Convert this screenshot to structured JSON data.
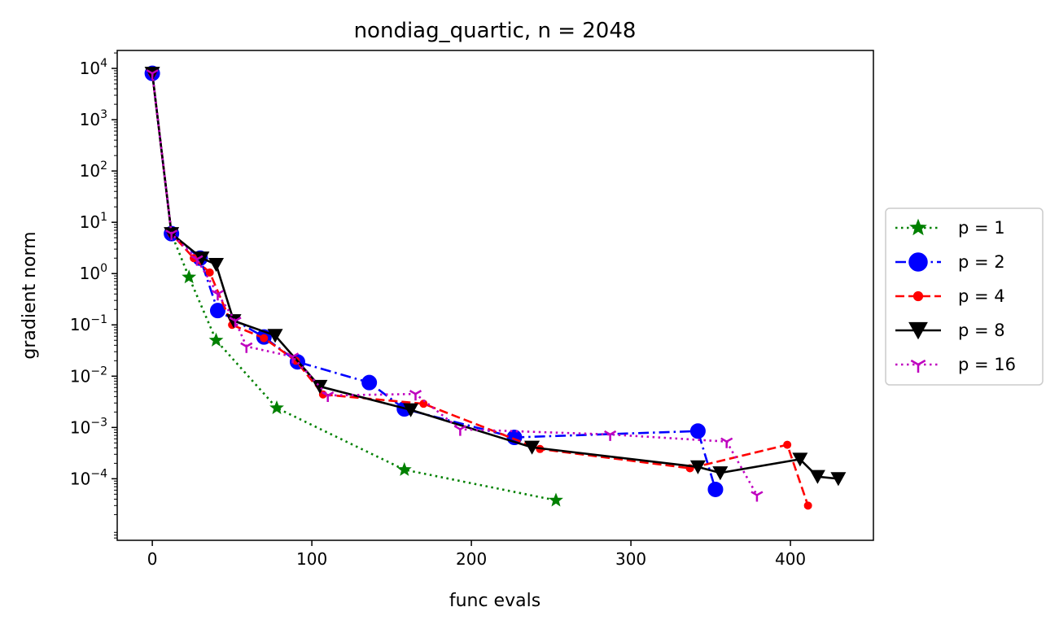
{
  "chart_data": {
    "type": "line",
    "title": "nondiag_quartic, n = 2048",
    "xlabel": "func evals",
    "ylabel": "gradient norm",
    "xscale": "linear",
    "yscale": "log",
    "xlim": [
      -22,
      452
    ],
    "ylim_log10": [
      -5.2,
      4.35
    ],
    "xticks": [
      0,
      100,
      200,
      300,
      400
    ],
    "xtick_labels": [
      "0",
      "100",
      "200",
      "300",
      "400"
    ],
    "ytick_exponents": [
      -4,
      -3,
      -2,
      -1,
      0,
      1,
      2,
      3,
      4
    ],
    "ytick_base": "10",
    "grid": false,
    "legend_position": "outside-right",
    "series": [
      {
        "name": "p = 1",
        "color": "#008000",
        "linestyle": "dotted",
        "marker": "star",
        "points": [
          [
            0,
            8000
          ],
          [
            12,
            6
          ],
          [
            23,
            0.85
          ],
          [
            40,
            0.05
          ],
          [
            78,
            0.0024
          ],
          [
            158,
            0.00015
          ],
          [
            253,
            3.8e-05
          ]
        ]
      },
      {
        "name": "p = 2",
        "color": "#0000ff",
        "linestyle": "dashdot",
        "marker": "circle",
        "points": [
          [
            0,
            8000
          ],
          [
            12,
            6
          ],
          [
            30,
            2
          ],
          [
            41,
            0.19
          ],
          [
            70,
            0.058
          ],
          [
            91,
            0.019
          ],
          [
            136,
            0.0075
          ],
          [
            158,
            0.0023
          ],
          [
            227,
            0.00064
          ],
          [
            342,
            0.00085
          ],
          [
            353,
            6.2e-05
          ]
        ]
      },
      {
        "name": "p = 4",
        "color": "#ff0000",
        "linestyle": "dashed",
        "marker": "point",
        "points": [
          [
            0,
            8000
          ],
          [
            12,
            6
          ],
          [
            26,
            2
          ],
          [
            36,
            1.05
          ],
          [
            50,
            0.1
          ],
          [
            70,
            0.055
          ],
          [
            90,
            0.02
          ],
          [
            107,
            0.0044
          ],
          [
            170,
            0.0029
          ],
          [
            243,
            0.00038
          ],
          [
            337,
            0.00016
          ],
          [
            398,
            0.00046
          ],
          [
            411,
            3e-05
          ]
        ]
      },
      {
        "name": "p = 8",
        "color": "#000000",
        "linestyle": "solid",
        "marker": "triangle-down",
        "points": [
          [
            0,
            8000
          ],
          [
            12,
            6
          ],
          [
            31,
            2
          ],
          [
            40,
            1.5
          ],
          [
            51,
            0.12
          ],
          [
            77,
            0.062
          ],
          [
            105,
            0.0063
          ],
          [
            162,
            0.0022
          ],
          [
            238,
            0.00041
          ],
          [
            342,
            0.00017
          ],
          [
            356,
            0.00013
          ],
          [
            406,
            0.00024
          ],
          [
            417,
            0.00011
          ],
          [
            430,
            0.0001
          ]
        ]
      },
      {
        "name": "p = 16",
        "color": "#bf00bf",
        "linestyle": "dotted",
        "marker": "tri-down",
        "points": [
          [
            0,
            8000
          ],
          [
            12,
            6
          ],
          [
            28,
            1.9
          ],
          [
            41,
            0.4
          ],
          [
            52,
            0.12
          ],
          [
            59,
            0.038
          ],
          [
            88,
            0.024
          ],
          [
            110,
            0.0042
          ],
          [
            165,
            0.0045
          ],
          [
            193,
            0.00092
          ],
          [
            287,
            0.00073
          ],
          [
            360,
            0.00053
          ],
          [
            379,
            4.8e-05
          ]
        ]
      }
    ]
  }
}
